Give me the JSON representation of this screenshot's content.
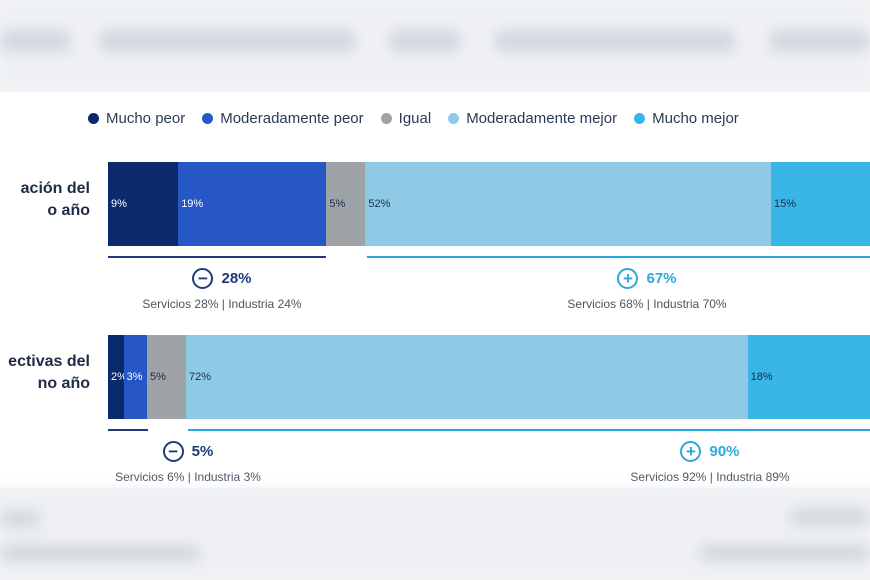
{
  "legend": [
    {
      "label": "Mucho peor",
      "color": "#0b2a6b"
    },
    {
      "label": "Moderadamente peor",
      "color": "#2657c5"
    },
    {
      "label": "Igual",
      "color": "#9ea3a8"
    },
    {
      "label": "Moderadamente mejor",
      "color": "#8ecae6"
    },
    {
      "label": "Mucho mejor",
      "color": "#38b6e8"
    }
  ],
  "chart_data": {
    "type": "bar",
    "orientation": "horizontal-stacked",
    "categories": [
      "ación del\no año",
      "ectivas del\nno año"
    ],
    "series": [
      {
        "name": "Mucho peor",
        "values": [
          9,
          2
        ]
      },
      {
        "name": "Moderadamente peor",
        "values": [
          19,
          3
        ]
      },
      {
        "name": "Igual",
        "values": [
          5,
          5
        ]
      },
      {
        "name": "Moderadamente mejor",
        "values": [
          52,
          72
        ]
      },
      {
        "name": "Mucho mejor",
        "values": [
          15,
          18
        ]
      }
    ],
    "data_labels": [
      [
        "9%",
        "19%",
        "5%",
        "52%",
        "15%"
      ],
      [
        "2%",
        "3%",
        "5%",
        "72%",
        "18%"
      ]
    ],
    "summaries": [
      {
        "negative": {
          "symbol": "−",
          "value": "28%",
          "detail": "Servicios 28% | Industria 24%"
        },
        "positive": {
          "symbol": "+",
          "value": "67%",
          "detail": "Servicios 68% | Industria 70%"
        }
      },
      {
        "negative": {
          "symbol": "−",
          "value": "5%",
          "detail": "Servicios 6% | Industria 3%"
        },
        "positive": {
          "symbol": "+",
          "value": "90%",
          "detail": "Servicios 92% | Industria 89%"
        }
      }
    ],
    "colors": {
      "negative": "#1f3a7a",
      "positive": "#2aa9de"
    },
    "xlim": [
      0,
      100
    ]
  }
}
